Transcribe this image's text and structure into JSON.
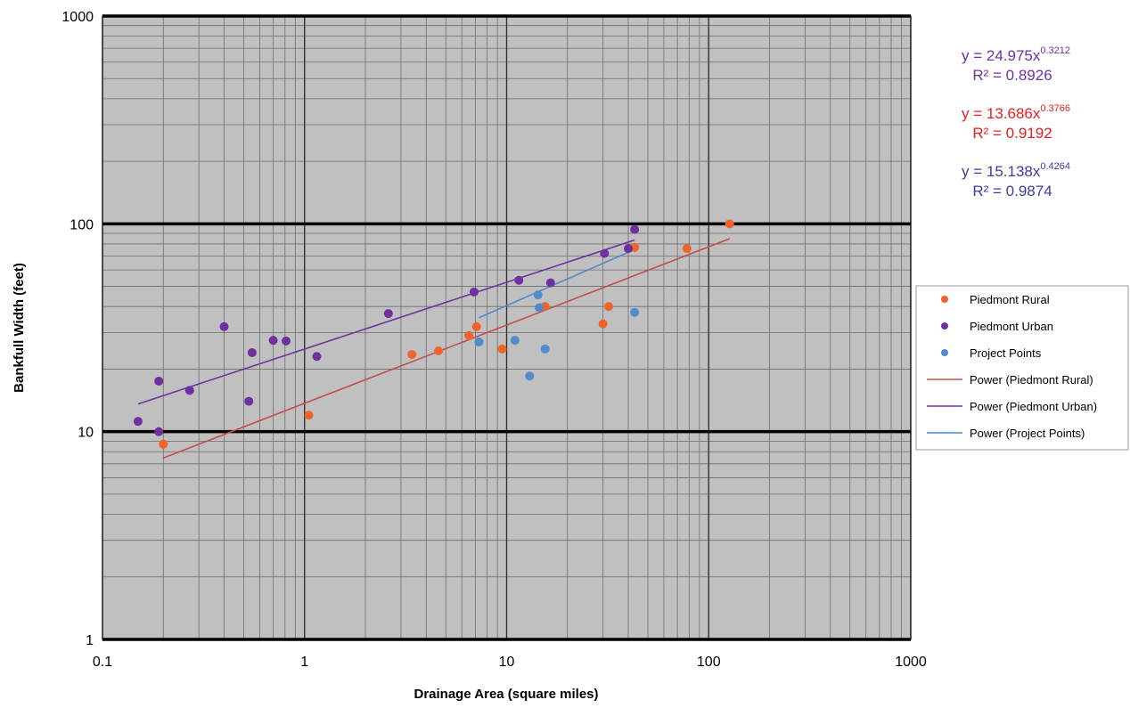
{
  "chart_data": {
    "type": "scatter",
    "title": "",
    "xlabel": "Drainage Area (square miles)",
    "ylabel": "Bankfull Width (feet)",
    "xscale": "log",
    "yscale": "log",
    "xlim": [
      0.1,
      1000
    ],
    "ylim": [
      1,
      1000
    ],
    "x_ticks": [
      "0.1",
      "1",
      "10",
      "100",
      "1000"
    ],
    "y_ticks": [
      "1",
      "10",
      "100",
      "1000"
    ],
    "grid": true,
    "legend_position": "right",
    "series": [
      {
        "name": "Piedmont Rural",
        "kind": "points",
        "color": "#f0642a",
        "points": [
          [
            0.2,
            8.7
          ],
          [
            1.05,
            12
          ],
          [
            3.4,
            23.5
          ],
          [
            4.6,
            24.5
          ],
          [
            6.5,
            29
          ],
          [
            7.1,
            32
          ],
          [
            9.5,
            25
          ],
          [
            15.5,
            40
          ],
          [
            30,
            33
          ],
          [
            32,
            40
          ],
          [
            43,
            77
          ],
          [
            78,
            76
          ],
          [
            127,
            100
          ]
        ]
      },
      {
        "name": "Piedmont Urban",
        "kind": "points",
        "color": "#7030a0",
        "points": [
          [
            0.15,
            11.2
          ],
          [
            0.19,
            17.5
          ],
          [
            0.19,
            10
          ],
          [
            0.27,
            15.8
          ],
          [
            0.4,
            32
          ],
          [
            0.53,
            14
          ],
          [
            0.55,
            24
          ],
          [
            0.7,
            27.5
          ],
          [
            0.81,
            27.3
          ],
          [
            1.15,
            23
          ],
          [
            2.6,
            37
          ],
          [
            6.9,
            47
          ],
          [
            11.5,
            53.5
          ],
          [
            16.5,
            52
          ],
          [
            30.5,
            72
          ],
          [
            40,
            76
          ],
          [
            43,
            94
          ]
        ]
      },
      {
        "name": "Project Points",
        "kind": "points",
        "color": "#4f8cc9",
        "points": [
          [
            7.3,
            27
          ],
          [
            11,
            27.5
          ],
          [
            13,
            18.5
          ],
          [
            14.3,
            45.5
          ],
          [
            14.5,
            39.5
          ],
          [
            15.5,
            25
          ],
          [
            43,
            37.5
          ]
        ]
      },
      {
        "name": "Power (Piedmont Rural)",
        "kind": "trendline",
        "color": "#c0504d",
        "equation": "y = 13.686x",
        "exponent": "0.3766",
        "r2": "R² = 0.9192",
        "equation_color": "#e02020",
        "coef": 13.686,
        "pow": 0.3766,
        "x_range": [
          0.2,
          127
        ]
      },
      {
        "name": "Power (Piedmont Urban)",
        "kind": "trendline",
        "color": "#7030a0",
        "equation": "y = 24.975x",
        "exponent": "0.3212",
        "r2": "R² = 0.8926",
        "equation_color": "#7030a0",
        "coef": 24.975,
        "pow": 0.3212,
        "x_range": [
          0.15,
          43
        ]
      },
      {
        "name": "Power (Project Points)",
        "kind": "trendline",
        "color": "#4f8cc9",
        "equation": "y = 15.138x",
        "exponent": "0.4264",
        "r2": "R² = 0.9874",
        "equation_color": "#3c3ca0",
        "coef": 15.138,
        "pow": 0.4264,
        "x_range": [
          7.3,
          43
        ]
      }
    ],
    "legend": [
      "Piedmont Rural",
      "Piedmont Urban",
      "Project Points",
      "Power (Piedmont Rural)",
      "Power (Piedmont Urban)",
      "Power (Project Points)"
    ],
    "equation_order": [
      "Power (Piedmont Urban)",
      "Power (Piedmont Rural)",
      "Power (Project Points)"
    ]
  }
}
